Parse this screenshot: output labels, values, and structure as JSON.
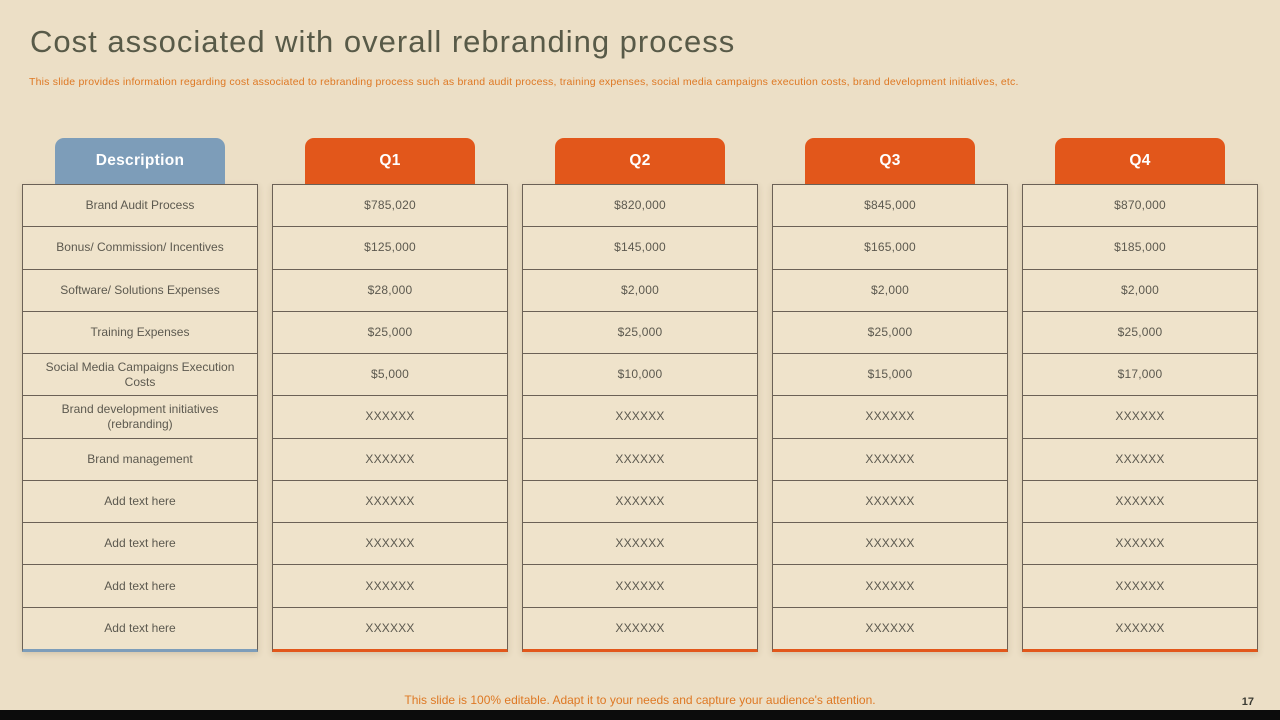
{
  "slide": {
    "title": "Cost associated with overall rebranding process",
    "subtitle": "This slide provides information regarding cost associated to rebranding process such as brand audit process,  training expenses, social media campaigns execution costs, brand development initiatives, etc.",
    "footer": "This slide is 100% editable. Adapt it to your needs and capture your audience's attention.",
    "page_number": "17"
  },
  "colors": {
    "background": "#ECDFC6",
    "accent_orange": "#E2571B",
    "accent_blue": "#7D9DB9",
    "title_color": "#585A48",
    "border": "#6B6156",
    "text": "#5C594F",
    "text_orange": "#DE7823",
    "cell_bg": "#EFE3CB",
    "bar": "#0C0C0C"
  },
  "table": {
    "description_header": "Description",
    "row_labels": [
      "Brand Audit Process",
      "Bonus/ Commission/ Incentives",
      "Software/ Solutions Expenses",
      "Training Expenses",
      "Social Media Campaigns Execution Costs",
      "Brand development initiatives (rebranding)",
      "Brand management",
      "Add text here",
      "Add text here",
      "Add text here",
      "Add text here"
    ],
    "quarters": [
      {
        "label": "Q1",
        "values": [
          "$785,020",
          "$125,000",
          "$28,000",
          "$25,000",
          "$5,000",
          "XXXXXX",
          "XXXXXX",
          "XXXXXX",
          "XXXXXX",
          "XXXXXX",
          "XXXXXX"
        ]
      },
      {
        "label": "Q2",
        "values": [
          "$820,000",
          "$145,000",
          "$2,000",
          "$25,000",
          "$10,000",
          "XXXXXX",
          "XXXXXX",
          "XXXXXX",
          "XXXXXX",
          "XXXXXX",
          "XXXXXX"
        ]
      },
      {
        "label": "Q3",
        "values": [
          "$845,000",
          "$165,000",
          "$2,000",
          "$25,000",
          "$15,000",
          "XXXXXX",
          "XXXXXX",
          "XXXXXX",
          "XXXXXX",
          "XXXXXX",
          "XXXXXX"
        ]
      },
      {
        "label": "Q4",
        "values": [
          "$870,000",
          "$185,000",
          "$2,000",
          "$25,000",
          "$17,000",
          "XXXXXX",
          "XXXXXX",
          "XXXXXX",
          "XXXXXX",
          "XXXXXX",
          "XXXXXX"
        ]
      }
    ]
  }
}
